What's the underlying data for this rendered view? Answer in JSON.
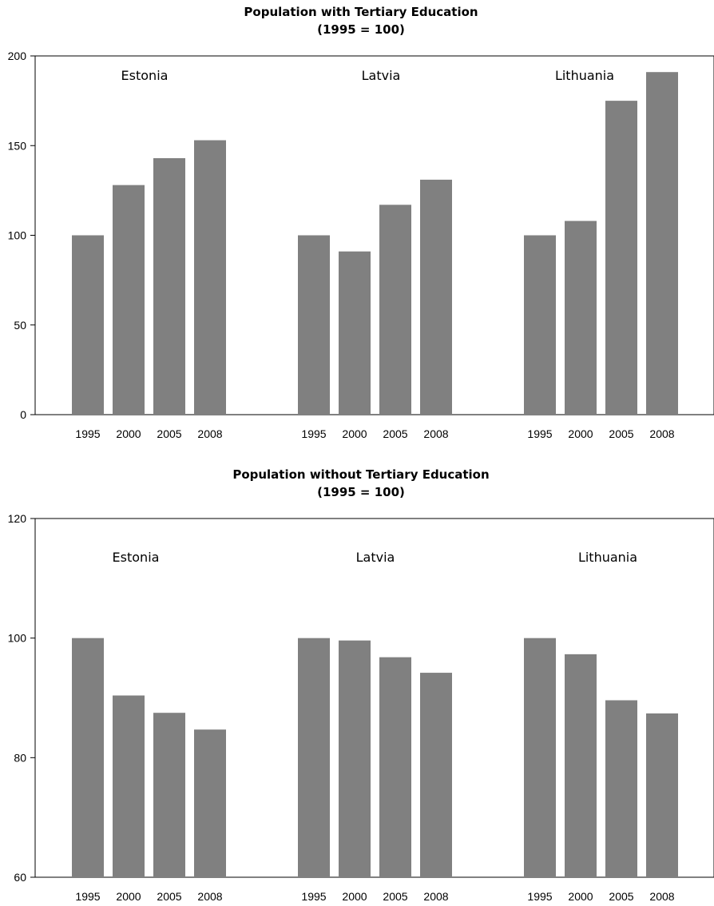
{
  "chart_data": [
    {
      "type": "bar",
      "title": "Population with Tertiary Education",
      "subtitle": "(1995 = 100)",
      "groups": [
        "Estonia",
        "Latvia",
        "Lithuania"
      ],
      "categories": [
        "1995",
        "2000",
        "2005",
        "2008"
      ],
      "series": [
        {
          "group": "Estonia",
          "values": [
            100,
            128,
            143,
            153
          ]
        },
        {
          "group": "Latvia",
          "values": [
            100,
            91,
            117,
            131
          ]
        },
        {
          "group": "Lithuania",
          "values": [
            100,
            108,
            175,
            191
          ]
        }
      ],
      "ylim": [
        0,
        200
      ],
      "yticks": [
        "0",
        "50",
        "100",
        "150",
        "200"
      ],
      "bar_color": "#808080",
      "grid": false
    },
    {
      "type": "bar",
      "title": "Population without Tertiary Education",
      "subtitle": "(1995 = 100)",
      "groups": [
        "Estonia",
        "Latvia",
        "Lithuania"
      ],
      "categories": [
        "1995",
        "2000",
        "2005",
        "2008"
      ],
      "series": [
        {
          "group": "Estonia",
          "values": [
            100,
            90.4,
            87.5,
            84.7
          ]
        },
        {
          "group": "Latvia",
          "values": [
            100,
            99.6,
            96.8,
            94.2
          ]
        },
        {
          "group": "Lithuania",
          "values": [
            100,
            97.3,
            89.6,
            87.4
          ]
        }
      ],
      "ylim": [
        60,
        120
      ],
      "yticks": [
        "60",
        "80",
        "100",
        "120"
      ],
      "bar_color": "#808080",
      "grid": false
    }
  ]
}
